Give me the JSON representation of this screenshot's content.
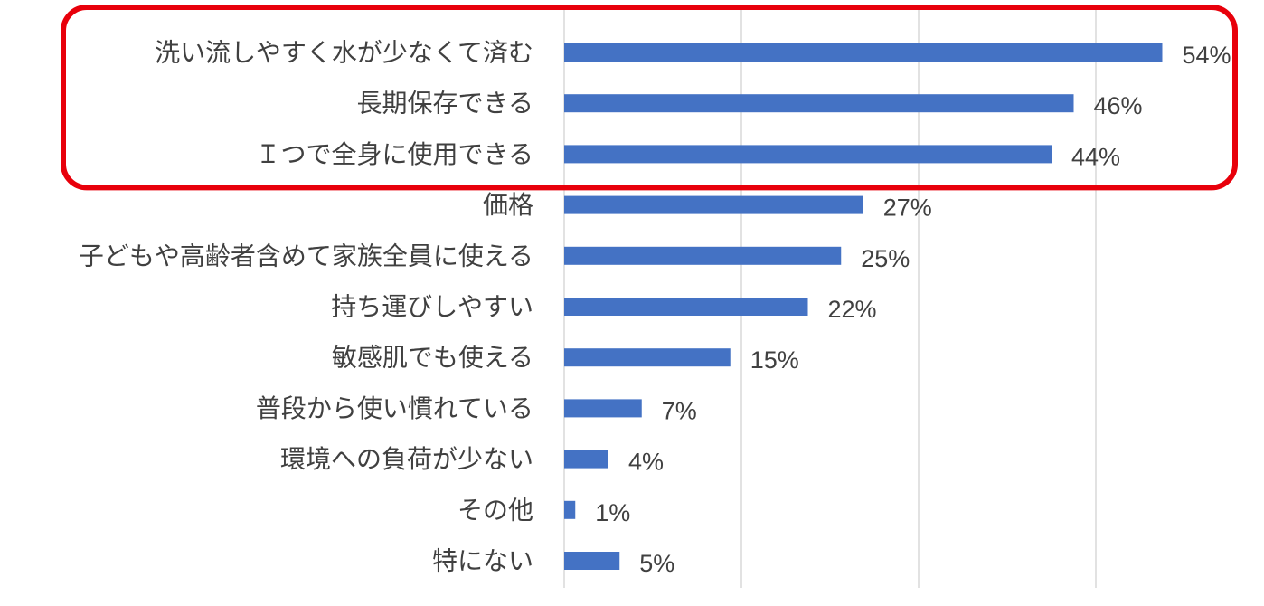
{
  "chart_data": {
    "type": "bar",
    "orientation": "horizontal",
    "categories": [
      "洗い流しやすく水が少なくて済む",
      "長期保存できる",
      "Ｉつで全身に使用できる",
      "価格",
      "子どもや高齢者含めて家族全員に使える",
      "持ち運びしやすい",
      "敏感肌でも使える",
      "普段から使い慣れている",
      "環境への負荷が少ない",
      "その他",
      "特にない"
    ],
    "values": [
      54,
      46,
      44,
      27,
      25,
      22,
      15,
      7,
      4,
      1,
      5
    ],
    "value_labels": [
      "54%",
      "46%",
      "44%",
      "27%",
      "25%",
      "22%",
      "15%",
      "7%",
      "4%",
      "1%",
      "5%"
    ],
    "xlim": [
      0,
      64
    ],
    "unit": "%",
    "grid": true,
    "legend": "none",
    "title": "",
    "xlabel": "",
    "ylabel": "",
    "highlight": {
      "categories_highlighted": 3,
      "color": "#e8000b"
    },
    "bar_color": "#4472c4"
  }
}
